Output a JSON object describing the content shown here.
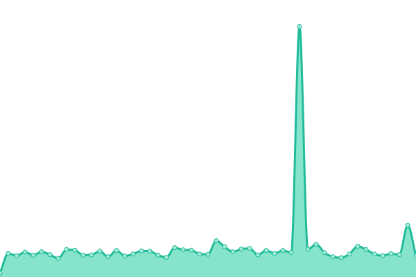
{
  "chart_data": {
    "type": "area",
    "title": "",
    "xlabel": "",
    "ylabel": "",
    "x": [
      0,
      1,
      2,
      3,
      4,
      5,
      6,
      7,
      8,
      9,
      10,
      11,
      12,
      13,
      14,
      15,
      16,
      17,
      18,
      19,
      20,
      21,
      22,
      23,
      24,
      25,
      26,
      27,
      28,
      29,
      30,
      31,
      32,
      33,
      34,
      35,
      36,
      37,
      38,
      39,
      40,
      41,
      42,
      43,
      44,
      45,
      46,
      47,
      48,
      49,
      50
    ],
    "series": [
      {
        "name": "",
        "values": [
          0.9,
          8.0,
          7.2,
          8.5,
          7.4,
          8.6,
          7.6,
          6.2,
          9.4,
          9.2,
          7.4,
          7.5,
          8.8,
          6.8,
          9.1,
          7.1,
          7.8,
          8.9,
          8.8,
          7.4,
          6.6,
          10.1,
          9.3,
          9.2,
          7.8,
          7.7,
          12.6,
          10.4,
          8.6,
          9.6,
          9.8,
          7.5,
          9.1,
          8.0,
          9.1,
          8.3,
          89.9,
          9.5,
          11.3,
          8.3,
          6.8,
          6.5,
          7.8,
          10.6,
          9.4,
          7.8,
          7.2,
          7.9,
          7.6,
          18.2,
          7.1
        ]
      }
    ],
    "ylim": [
      0,
      100
    ],
    "grid": false,
    "legend": "none",
    "colors": {
      "fill": "#86e3cc",
      "line": "#20bc9a",
      "marker_fill": "#a4ead9",
      "marker_stroke": "#20bc9a",
      "background": "#ffffff"
    }
  }
}
